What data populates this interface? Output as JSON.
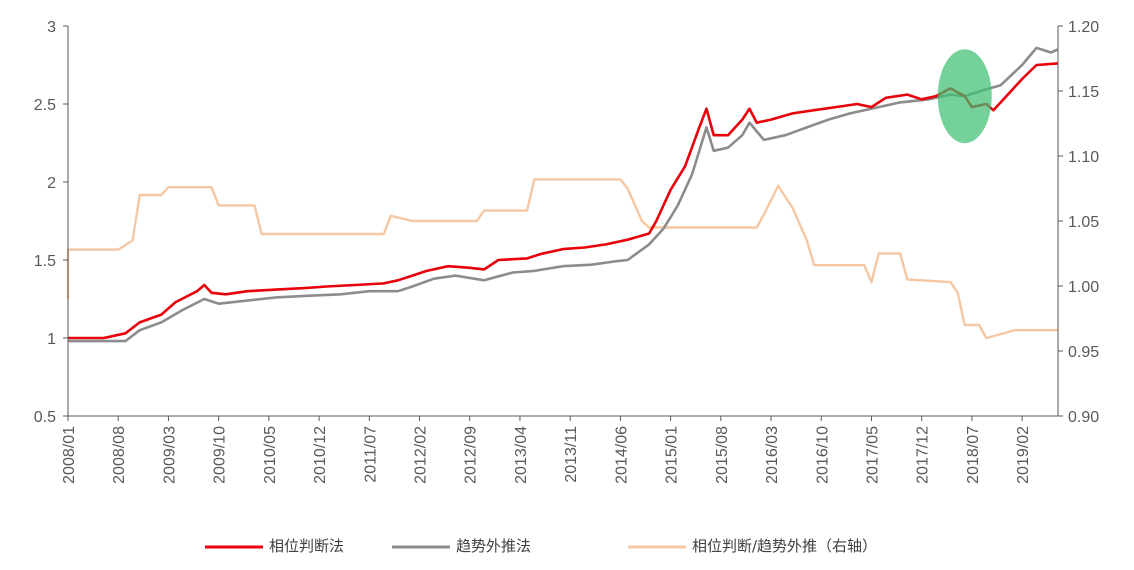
{
  "chart_data": {
    "type": "line",
    "left_axis": {
      "min": 0.5,
      "max": 3,
      "ticks": [
        "0.5",
        "1",
        "1.5",
        "2",
        "2.5",
        "3"
      ],
      "tick_values": [
        0.5,
        1,
        1.5,
        2,
        2.5,
        3
      ]
    },
    "right_axis": {
      "min": 0.9,
      "max": 1.2,
      "ticks": [
        "0.90",
        "0.95",
        "1.00",
        "1.05",
        "1.10",
        "1.15",
        "1.20"
      ],
      "tick_values": [
        0.9,
        0.95,
        1.0,
        1.05,
        1.1,
        1.15,
        1.2
      ]
    },
    "x_range": [
      "2008-01",
      "2019-07"
    ],
    "x_ticks": [
      "2008/01",
      "2008/08",
      "2009/03",
      "2009/10",
      "2010/05",
      "2010/12",
      "2011/07",
      "2012/02",
      "2012/09",
      "2013/04",
      "2013/11",
      "2014/06",
      "2015/01",
      "2015/08",
      "2016/03",
      "2016/10",
      "2017/05",
      "2017/12",
      "2018/07",
      "2019/02"
    ],
    "grid": false,
    "legend_position": "bottom",
    "highlight": {
      "center": "2018-06",
      "y": 2.55,
      "axis": "left",
      "color": "#3dbf72"
    },
    "series": [
      {
        "name": "相位判断法",
        "color": "#e8000b",
        "axis": "left",
        "points": [
          [
            "2008-01",
            1.0
          ],
          [
            "2008-06",
            1.0
          ],
          [
            "2008-09",
            1.03
          ],
          [
            "2008-11",
            1.1
          ],
          [
            "2009-02",
            1.15
          ],
          [
            "2009-04",
            1.23
          ],
          [
            "2009-07",
            1.3
          ],
          [
            "2009-08",
            1.34
          ],
          [
            "2009-09",
            1.29
          ],
          [
            "2009-11",
            1.28
          ],
          [
            "2010-02",
            1.3
          ],
          [
            "2010-06",
            1.31
          ],
          [
            "2010-10",
            1.32
          ],
          [
            "2011-01",
            1.33
          ],
          [
            "2011-05",
            1.34
          ],
          [
            "2011-09",
            1.35
          ],
          [
            "2011-11",
            1.37
          ],
          [
            "2012-01",
            1.4
          ],
          [
            "2012-03",
            1.43
          ],
          [
            "2012-06",
            1.46
          ],
          [
            "2012-09",
            1.45
          ],
          [
            "2012-11",
            1.44
          ],
          [
            "2013-01",
            1.5
          ],
          [
            "2013-05",
            1.51
          ],
          [
            "2013-07",
            1.54
          ],
          [
            "2013-10",
            1.57
          ],
          [
            "2014-01",
            1.58
          ],
          [
            "2014-04",
            1.6
          ],
          [
            "2014-07",
            1.63
          ],
          [
            "2014-10",
            1.67
          ],
          [
            "2014-11",
            1.75
          ],
          [
            "2015-01",
            1.95
          ],
          [
            "2015-03",
            2.1
          ],
          [
            "2015-05",
            2.35
          ],
          [
            "2015-06",
            2.47
          ],
          [
            "2015-07",
            2.3
          ],
          [
            "2015-09",
            2.3
          ],
          [
            "2015-11",
            2.4
          ],
          [
            "2015-12",
            2.47
          ],
          [
            "2016-01",
            2.38
          ],
          [
            "2016-03",
            2.4
          ],
          [
            "2016-06",
            2.44
          ],
          [
            "2016-09",
            2.46
          ],
          [
            "2016-12",
            2.48
          ],
          [
            "2017-03",
            2.5
          ],
          [
            "2017-05",
            2.48
          ],
          [
            "2017-07",
            2.54
          ],
          [
            "2017-10",
            2.56
          ],
          [
            "2017-12",
            2.53
          ],
          [
            "2018-02",
            2.55
          ],
          [
            "2018-04",
            2.6
          ],
          [
            "2018-06",
            2.55
          ],
          [
            "2018-07",
            2.48
          ],
          [
            "2018-09",
            2.5
          ],
          [
            "2018-10",
            2.46
          ],
          [
            "2018-12",
            2.56
          ],
          [
            "2019-02",
            2.66
          ],
          [
            "2019-04",
            2.75
          ],
          [
            "2019-07",
            2.76
          ]
        ]
      },
      {
        "name": "趋势外推法",
        "color": "#8c8c8c",
        "axis": "left",
        "points": [
          [
            "2008-01",
            0.98
          ],
          [
            "2008-06",
            0.98
          ],
          [
            "2008-09",
            0.98
          ],
          [
            "2008-11",
            1.05
          ],
          [
            "2009-02",
            1.1
          ],
          [
            "2009-05",
            1.18
          ],
          [
            "2009-08",
            1.25
          ],
          [
            "2009-10",
            1.22
          ],
          [
            "2010-02",
            1.24
          ],
          [
            "2010-06",
            1.26
          ],
          [
            "2010-10",
            1.27
          ],
          [
            "2011-03",
            1.28
          ],
          [
            "2011-07",
            1.3
          ],
          [
            "2011-11",
            1.3
          ],
          [
            "2012-01",
            1.33
          ],
          [
            "2012-04",
            1.38
          ],
          [
            "2012-07",
            1.4
          ],
          [
            "2012-11",
            1.37
          ],
          [
            "2013-03",
            1.42
          ],
          [
            "2013-06",
            1.43
          ],
          [
            "2013-10",
            1.46
          ],
          [
            "2014-02",
            1.47
          ],
          [
            "2014-05",
            1.49
          ],
          [
            "2014-07",
            1.5
          ],
          [
            "2014-10",
            1.6
          ],
          [
            "2014-12",
            1.7
          ],
          [
            "2015-02",
            1.85
          ],
          [
            "2015-04",
            2.05
          ],
          [
            "2015-06",
            2.35
          ],
          [
            "2015-07",
            2.2
          ],
          [
            "2015-09",
            2.22
          ],
          [
            "2015-11",
            2.3
          ],
          [
            "2015-12",
            2.38
          ],
          [
            "2016-02",
            2.27
          ],
          [
            "2016-05",
            2.3
          ],
          [
            "2016-08",
            2.35
          ],
          [
            "2016-11",
            2.4
          ],
          [
            "2017-02",
            2.44
          ],
          [
            "2017-06",
            2.48
          ],
          [
            "2017-09",
            2.51
          ],
          [
            "2018-01",
            2.53
          ],
          [
            "2018-04",
            2.56
          ],
          [
            "2018-06",
            2.55
          ],
          [
            "2018-08",
            2.58
          ],
          [
            "2018-11",
            2.62
          ],
          [
            "2019-02",
            2.75
          ],
          [
            "2019-04",
            2.86
          ],
          [
            "2019-06",
            2.83
          ],
          [
            "2019-07",
            2.85
          ]
        ]
      },
      {
        "name": "相位判断/趋势外推（右轴）",
        "color": "#f6c7a3",
        "axis": "right",
        "points": [
          [
            "2008-01",
            0.99
          ],
          [
            "2008-01",
            1.028
          ],
          [
            "2008-08",
            1.028
          ],
          [
            "2008-10",
            1.035
          ],
          [
            "2008-11",
            1.07
          ],
          [
            "2009-02",
            1.07
          ],
          [
            "2009-03",
            1.076
          ],
          [
            "2009-09",
            1.076
          ],
          [
            "2009-10",
            1.062
          ],
          [
            "2010-03",
            1.062
          ],
          [
            "2010-04",
            1.04
          ],
          [
            "2011-09",
            1.04
          ],
          [
            "2011-10",
            1.054
          ],
          [
            "2012-01",
            1.05
          ],
          [
            "2012-10",
            1.05
          ],
          [
            "2012-11",
            1.058
          ],
          [
            "2013-05",
            1.058
          ],
          [
            "2013-06",
            1.082
          ],
          [
            "2014-06",
            1.082
          ],
          [
            "2014-07",
            1.075
          ],
          [
            "2014-09",
            1.05
          ],
          [
            "2014-10",
            1.045
          ],
          [
            "2016-01",
            1.045
          ],
          [
            "2016-02",
            1.055
          ],
          [
            "2016-04",
            1.077
          ],
          [
            "2016-06",
            1.06
          ],
          [
            "2016-08",
            1.035
          ],
          [
            "2016-09",
            1.016
          ],
          [
            "2017-04",
            1.016
          ],
          [
            "2017-05",
            1.003
          ],
          [
            "2017-06",
            1.025
          ],
          [
            "2017-09",
            1.025
          ],
          [
            "2017-10",
            1.005
          ],
          [
            "2018-04",
            1.003
          ],
          [
            "2018-05",
            0.995
          ],
          [
            "2018-06",
            0.97
          ],
          [
            "2018-08",
            0.97
          ],
          [
            "2018-09",
            0.96
          ],
          [
            "2019-01",
            0.966
          ],
          [
            "2019-07",
            0.966
          ]
        ]
      }
    ]
  }
}
